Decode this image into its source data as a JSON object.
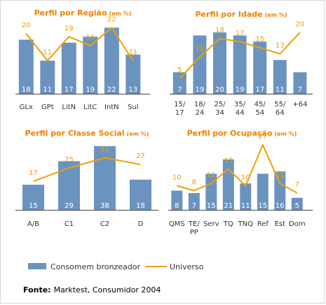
{
  "legend": {
    "bar_label": "Consomem bronzeador",
    "line_label": "Universo"
  },
  "source": {
    "label": "Fonte:",
    "text": "Marktest, Consumidor 2004"
  },
  "colors": {
    "bar": "#6b93bf",
    "line": "#f0a000",
    "title": "#f08000"
  },
  "chart_data": [
    {
      "type": "bar",
      "title": "Perfil por Região",
      "title_unit": "(em %)",
      "categories": [
        [
          "GLx"
        ],
        [
          "GPt"
        ],
        [
          "LitN"
        ],
        [
          "LitC"
        ],
        [
          "IntN"
        ],
        [
          "Sul"
        ]
      ],
      "series": [
        {
          "name": "Consomem bronzeador",
          "type": "bar",
          "values": [
            18,
            11,
            17,
            19,
            22,
            13
          ]
        },
        {
          "name": "Universo",
          "type": "line",
          "values": [
            20,
            11,
            19,
            16,
            22,
            11
          ]
        }
      ],
      "ylim": [
        0,
        27
      ]
    },
    {
      "type": "bar",
      "title": "Perfil por Idade",
      "title_unit": "(em %)",
      "categories": [
        [
          "15/",
          "17"
        ],
        [
          "18/",
          "24"
        ],
        [
          "25/",
          "34"
        ],
        [
          "35/",
          "44"
        ],
        [
          "45/",
          "54"
        ],
        [
          "55/",
          "64"
        ],
        [
          "+64"
        ]
      ],
      "series": [
        {
          "name": "Consomem bronzeador",
          "type": "bar",
          "values": [
            7,
            19,
            20,
            19,
            17,
            11,
            7
          ]
        },
        {
          "name": "Universo",
          "type": "line",
          "values": [
            5,
            12,
            18,
            17,
            15,
            13,
            20
          ]
        }
      ],
      "ylim": [
        0,
        26
      ]
    },
    {
      "type": "bar",
      "title": "Perfil por Classe Social",
      "title_unit": "(em %)",
      "categories": [
        [
          "A/B"
        ],
        [
          "C1"
        ],
        [
          "C2"
        ],
        [
          "D"
        ]
      ],
      "series": [
        {
          "name": "Consomem bronzeador",
          "type": "bar",
          "values": [
            15,
            29,
            38,
            18
          ]
        },
        {
          "name": "Universo",
          "type": "line",
          "values": [
            17,
            25,
            31,
            27
          ]
        }
      ],
      "ylim": [
        0,
        45
      ]
    },
    {
      "type": "bar",
      "title": "Perfil por Ocupação",
      "title_unit": "(em %)",
      "categories": [
        [
          "QMS"
        ],
        [
          "TE/",
          "PP"
        ],
        [
          "Serv"
        ],
        [
          "TQ"
        ],
        [
          "TNQ"
        ],
        [
          "Ref"
        ],
        [
          "Est"
        ],
        [
          "Dom"
        ]
      ],
      "series": [
        {
          "name": "Consomem bronzeador",
          "type": "bar",
          "values": [
            8,
            7,
            15,
            21,
            11,
            15,
            16,
            5
          ]
        },
        {
          "name": "Universo",
          "type": "line",
          "values": [
            10,
            8,
            11,
            17,
            10,
            27,
            11,
            7
          ]
        }
      ],
      "ylim": [
        0,
        32
      ]
    }
  ]
}
